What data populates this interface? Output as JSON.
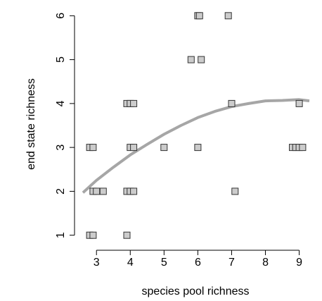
{
  "chart_data": {
    "type": "scatter",
    "title": "",
    "xlabel": "species pool richness",
    "ylabel": "end state richness",
    "xlim": [
      2.6,
      9.3
    ],
    "ylim": [
      0.85,
      6.15
    ],
    "xticks": [
      3,
      4,
      5,
      6,
      7,
      8,
      9
    ],
    "yticks": [
      1,
      2,
      3,
      4,
      5,
      6
    ],
    "grid": false,
    "legend": "none",
    "points": [
      {
        "x": 2.8,
        "y": 1
      },
      {
        "x": 2.9,
        "y": 1
      },
      {
        "x": 3.9,
        "y": 1
      },
      {
        "x": 2.9,
        "y": 2
      },
      {
        "x": 3.0,
        "y": 2
      },
      {
        "x": 3.2,
        "y": 2
      },
      {
        "x": 3.9,
        "y": 2
      },
      {
        "x": 4.0,
        "y": 2
      },
      {
        "x": 4.1,
        "y": 2
      },
      {
        "x": 7.1,
        "y": 2
      },
      {
        "x": 2.8,
        "y": 3
      },
      {
        "x": 2.9,
        "y": 3
      },
      {
        "x": 4.0,
        "y": 3
      },
      {
        "x": 4.1,
        "y": 3
      },
      {
        "x": 5.0,
        "y": 3
      },
      {
        "x": 6.0,
        "y": 3
      },
      {
        "x": 8.8,
        "y": 3
      },
      {
        "x": 8.9,
        "y": 3
      },
      {
        "x": 9.0,
        "y": 3
      },
      {
        "x": 9.1,
        "y": 3
      },
      {
        "x": 3.9,
        "y": 4
      },
      {
        "x": 4.0,
        "y": 4
      },
      {
        "x": 4.1,
        "y": 4
      },
      {
        "x": 7.0,
        "y": 4
      },
      {
        "x": 9.0,
        "y": 4
      },
      {
        "x": 5.8,
        "y": 5
      },
      {
        "x": 6.1,
        "y": 5
      },
      {
        "x": 6.0,
        "y": 6
      },
      {
        "x": 6.05,
        "y": 6
      },
      {
        "x": 6.9,
        "y": 6
      }
    ],
    "trend_line": {
      "x": [
        2.6,
        3.0,
        3.5,
        4.0,
        4.5,
        5.0,
        5.5,
        6.0,
        6.5,
        7.0,
        7.5,
        8.0,
        8.5,
        9.0,
        9.3
      ],
      "y": [
        1.97,
        2.25,
        2.55,
        2.83,
        3.07,
        3.3,
        3.5,
        3.68,
        3.82,
        3.93,
        4.0,
        4.06,
        4.07,
        4.09,
        4.06
      ]
    },
    "colors": {
      "marker_fill": "#cccccc",
      "marker_stroke": "#333333",
      "trend_line": "#a6a6a6",
      "axis": "#000000"
    }
  }
}
